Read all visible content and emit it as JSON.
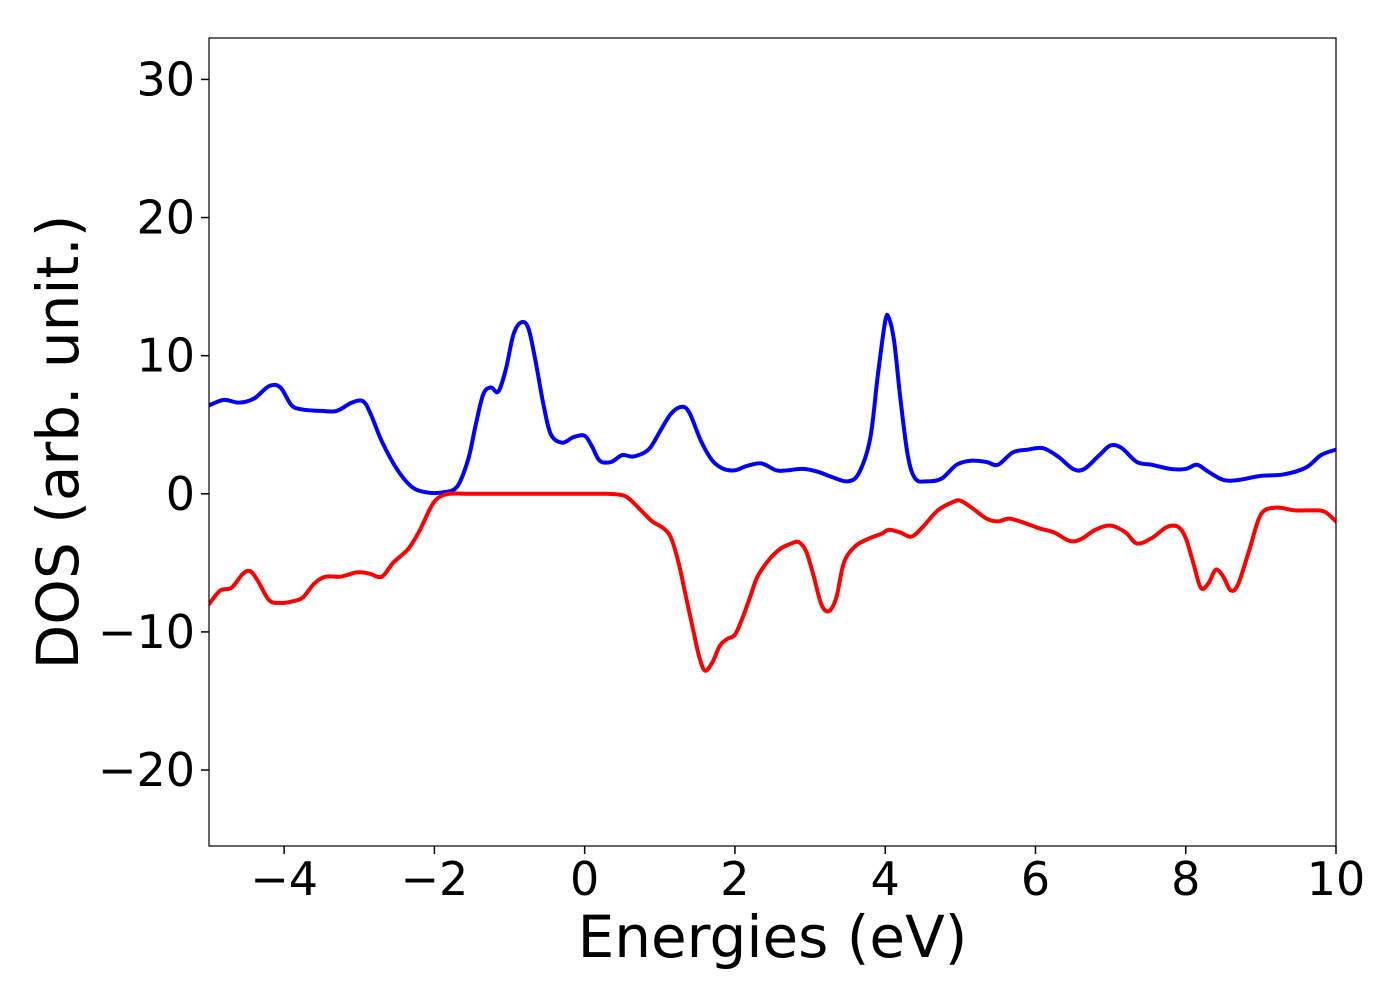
{
  "chart_data": {
    "type": "line",
    "xlabel": "Energies (eV)",
    "ylabel": "DOS (arb. unit.)",
    "xlim": [
      -5,
      10
    ],
    "ylim": [
      -25.5,
      33
    ],
    "xticks": [
      -4,
      -2,
      0,
      2,
      4,
      6,
      8,
      10
    ],
    "xtick_labels": [
      "−4",
      "−2",
      "0",
      "2",
      "4",
      "6",
      "8",
      "10"
    ],
    "yticks": [
      -20,
      -10,
      0,
      10,
      20,
      30
    ],
    "ytick_labels": [
      "−20",
      "−10",
      "0",
      "10",
      "20",
      "30"
    ],
    "grid": false,
    "legend": "none",
    "series": [
      {
        "color": "#0000ff",
        "x": [
          -5,
          -4.8,
          -4.6,
          -4.4,
          -4.2,
          -4.05,
          -3.9,
          -3.75,
          -3.5,
          -3.3,
          -3.1,
          -2.95,
          -2.85,
          -2.7,
          -2.5,
          -2.3,
          -2.1,
          -1.9,
          -1.7,
          -1.55,
          -1.45,
          -1.35,
          -1.25,
          -1.15,
          -1.05,
          -0.95,
          -0.85,
          -0.75,
          -0.65,
          -0.55,
          -0.45,
          -0.3,
          -0.15,
          0,
          0.1,
          0.2,
          0.35,
          0.5,
          0.65,
          0.85,
          1.0,
          1.15,
          1.3,
          1.4,
          1.55,
          1.7,
          1.85,
          2.0,
          2.15,
          2.35,
          2.55,
          2.7,
          2.9,
          3.1,
          3.3,
          3.5,
          3.65,
          3.8,
          3.9,
          4.0,
          4.05,
          4.12,
          4.2,
          4.3,
          4.4,
          4.55,
          4.75,
          4.95,
          5.15,
          5.35,
          5.5,
          5.7,
          5.9,
          6.1,
          6.3,
          6.5,
          6.65,
          6.85,
          7.0,
          7.15,
          7.35,
          7.55,
          7.8,
          8.0,
          8.15,
          8.3,
          8.5,
          8.7,
          9.0,
          9.3,
          9.6,
          9.8,
          10.0
        ],
        "y": [
          6.4,
          6.8,
          6.6,
          6.9,
          7.8,
          7.7,
          6.4,
          6.1,
          6.0,
          6.0,
          6.6,
          6.7,
          5.8,
          3.8,
          1.8,
          0.5,
          0.1,
          0.1,
          0.5,
          2.5,
          5.0,
          7.2,
          7.7,
          7.4,
          9.0,
          11.5,
          12.4,
          12.0,
          9.5,
          6.5,
          4.3,
          3.7,
          4.1,
          4.2,
          3.4,
          2.4,
          2.3,
          2.8,
          2.7,
          3.2,
          4.5,
          5.8,
          6.3,
          5.8,
          3.8,
          2.4,
          1.8,
          1.7,
          2.0,
          2.2,
          1.7,
          1.7,
          1.8,
          1.6,
          1.2,
          0.9,
          1.5,
          4.0,
          8.5,
          12.5,
          12.7,
          11.0,
          7.0,
          2.8,
          1.1,
          0.9,
          1.1,
          2.1,
          2.4,
          2.3,
          2.1,
          3.0,
          3.2,
          3.3,
          2.7,
          1.8,
          1.8,
          2.8,
          3.5,
          3.3,
          2.3,
          2.1,
          1.8,
          1.8,
          2.1,
          1.6,
          1.0,
          1.0,
          1.3,
          1.4,
          1.9,
          2.8,
          3.2
        ]
      },
      {
        "color": "#ff0000",
        "x": [
          -5,
          -4.85,
          -4.7,
          -4.55,
          -4.45,
          -4.35,
          -4.2,
          -4.05,
          -3.9,
          -3.75,
          -3.6,
          -3.45,
          -3.25,
          -3.05,
          -2.95,
          -2.85,
          -2.7,
          -2.55,
          -2.35,
          -2.2,
          -2.05,
          -1.95,
          -1.8,
          -1.5,
          -1.0,
          -0.5,
          0,
          0.3,
          0.5,
          0.6,
          0.75,
          0.9,
          1.05,
          1.15,
          1.25,
          1.35,
          1.45,
          1.52,
          1.6,
          1.7,
          1.8,
          1.9,
          2.0,
          2.1,
          2.2,
          2.3,
          2.45,
          2.6,
          2.75,
          2.85,
          2.95,
          3.05,
          3.15,
          3.25,
          3.35,
          3.45,
          3.6,
          3.8,
          3.95,
          4.05,
          4.2,
          4.35,
          4.5,
          4.7,
          4.9,
          5.0,
          5.15,
          5.35,
          5.5,
          5.65,
          5.85,
          6.05,
          6.25,
          6.45,
          6.6,
          6.8,
          7.0,
          7.2,
          7.35,
          7.55,
          7.75,
          7.9,
          8.0,
          8.1,
          8.2,
          8.3,
          8.4,
          8.5,
          8.6,
          8.7,
          8.85,
          9.0,
          9.2,
          9.45,
          9.7,
          9.85,
          10.0
        ],
        "y": [
          -8.0,
          -7.0,
          -6.8,
          -5.8,
          -5.6,
          -6.3,
          -7.7,
          -7.9,
          -7.8,
          -7.5,
          -6.5,
          -6.0,
          -6.0,
          -5.7,
          -5.7,
          -5.8,
          -6.0,
          -5.0,
          -4.0,
          -2.7,
          -1.0,
          -0.3,
          0,
          0,
          0,
          0,
          0,
          0,
          -0.1,
          -0.4,
          -1.2,
          -2.0,
          -2.5,
          -3.2,
          -5.0,
          -7.5,
          -10.0,
          -11.7,
          -12.8,
          -12.2,
          -11.0,
          -10.5,
          -10.2,
          -9.0,
          -7.5,
          -6.0,
          -4.8,
          -4.0,
          -3.6,
          -3.5,
          -4.2,
          -6.0,
          -8.0,
          -8.5,
          -7.5,
          -5.0,
          -3.8,
          -3.2,
          -2.9,
          -2.6,
          -2.8,
          -3.1,
          -2.4,
          -1.2,
          -0.6,
          -0.5,
          -1.0,
          -1.8,
          -2.0,
          -1.8,
          -2.1,
          -2.5,
          -2.8,
          -3.4,
          -3.3,
          -2.6,
          -2.3,
          -2.8,
          -3.6,
          -3.2,
          -2.4,
          -2.4,
          -3.2,
          -5.0,
          -6.8,
          -6.5,
          -5.5,
          -6.0,
          -7.0,
          -6.5,
          -4.0,
          -1.5,
          -1.0,
          -1.2,
          -1.2,
          -1.3,
          -2.0
        ]
      }
    ]
  }
}
